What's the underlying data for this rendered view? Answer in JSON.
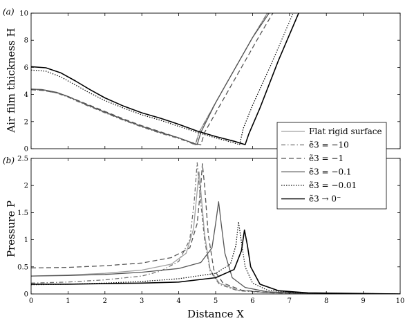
{
  "chart_data": [
    {
      "panel_label": "(a)",
      "type": "line",
      "ylabel": "Air film thickness H",
      "xlim": [
        0,
        10
      ],
      "ylim": [
        0,
        10
      ],
      "xticks": [
        "0",
        "1",
        "2",
        "3",
        "4",
        "5",
        "6",
        "7",
        "8",
        "9",
        "10"
      ],
      "yticks": [
        "0",
        "2",
        "4",
        "6",
        "8",
        "10"
      ],
      "series": [
        {
          "name": "Flat rigid surface",
          "color": "#a0a0a0",
          "dash": "solid",
          "points": [
            [
              0,
              4.4
            ],
            [
              0.3,
              4.36
            ],
            [
              0.7,
              4.15
            ],
            [
              1,
              3.85
            ],
            [
              1.5,
              3.25
            ],
            [
              2,
              2.7
            ],
            [
              2.5,
              2.15
            ],
            [
              3,
              1.65
            ],
            [
              3.5,
              1.2
            ],
            [
              4,
              0.8
            ],
            [
              4.3,
              0.5
            ],
            [
              4.45,
              0.28
            ],
            [
              4.55,
              1.2
            ],
            [
              5,
              3.4
            ],
            [
              5.5,
              5.8
            ],
            [
              6,
              8.2
            ],
            [
              6.4,
              10
            ]
          ]
        },
        {
          "name": "ẽ3 = −10",
          "color": "#707070",
          "dash": "6,3,1.5,3",
          "points": [
            [
              0,
              4.35
            ],
            [
              0.3,
              4.32
            ],
            [
              0.7,
              4.1
            ],
            [
              1,
              3.8
            ],
            [
              1.5,
              3.2
            ],
            [
              2,
              2.65
            ],
            [
              2.5,
              2.1
            ],
            [
              3,
              1.6
            ],
            [
              3.5,
              1.15
            ],
            [
              4,
              0.75
            ],
            [
              4.3,
              0.45
            ],
            [
              4.45,
              0.28
            ],
            [
              4.55,
              1.2
            ],
            [
              5,
              3.4
            ],
            [
              5.5,
              5.8
            ],
            [
              6,
              8.2
            ],
            [
              6.4,
              10
            ]
          ]
        },
        {
          "name": "ẽ3 = −1",
          "color": "#555555",
          "dash": "7,4",
          "points": [
            [
              0,
              4.35
            ],
            [
              0.3,
              4.3
            ],
            [
              0.7,
              4.12
            ],
            [
              1,
              3.85
            ],
            [
              1.5,
              3.3
            ],
            [
              2,
              2.75
            ],
            [
              2.5,
              2.2
            ],
            [
              3,
              1.7
            ],
            [
              3.5,
              1.25
            ],
            [
              4,
              0.8
            ],
            [
              4.3,
              0.5
            ],
            [
              4.6,
              0.28
            ],
            [
              4.7,
              1.2
            ],
            [
              5.2,
              3.6
            ],
            [
              5.7,
              6.0
            ],
            [
              6.2,
              8.4
            ],
            [
              6.55,
              10
            ]
          ]
        },
        {
          "name": "ẽ3 = −0.1",
          "color": "#555555",
          "dash": "solid",
          "points": [
            [
              0,
              4.4
            ],
            [
              0.3,
              4.36
            ],
            [
              0.7,
              4.15
            ],
            [
              1,
              3.85
            ],
            [
              1.5,
              3.25
            ],
            [
              2,
              2.7
            ],
            [
              2.5,
              2.15
            ],
            [
              3,
              1.65
            ],
            [
              3.5,
              1.2
            ],
            [
              4,
              0.8
            ],
            [
              4.3,
              0.5
            ],
            [
              4.5,
              0.3
            ],
            [
              4.6,
              1.2
            ],
            [
              5,
              3.4
            ],
            [
              5.5,
              5.8
            ],
            [
              6,
              8.2
            ],
            [
              6.45,
              10
            ]
          ]
        },
        {
          "name": "ẽ3 = −0.01",
          "color": "#111111",
          "dash": "1.5,2",
          "points": [
            [
              0,
              5.8
            ],
            [
              0.4,
              5.72
            ],
            [
              0.8,
              5.3
            ],
            [
              1.2,
              4.7
            ],
            [
              1.6,
              4.1
            ],
            [
              2,
              3.55
            ],
            [
              2.5,
              3.0
            ],
            [
              3,
              2.5
            ],
            [
              3.5,
              2.1
            ],
            [
              4,
              1.65
            ],
            [
              4.5,
              1.2
            ],
            [
              5,
              0.8
            ],
            [
              5.4,
              0.5
            ],
            [
              5.65,
              0.3
            ],
            [
              5.75,
              1.5
            ],
            [
              6,
              3.2
            ],
            [
              6.5,
              6.2
            ],
            [
              7.1,
              10
            ]
          ]
        },
        {
          "name": "ẽ3 → 0⁻",
          "color": "#000000",
          "dash": "solid",
          "points": [
            [
              0,
              6.05
            ],
            [
              0.4,
              5.97
            ],
            [
              0.8,
              5.6
            ],
            [
              1.2,
              5.0
            ],
            [
              1.6,
              4.35
            ],
            [
              2,
              3.75
            ],
            [
              2.5,
              3.15
            ],
            [
              3,
              2.65
            ],
            [
              3.5,
              2.25
            ],
            [
              4,
              1.8
            ],
            [
              4.5,
              1.3
            ],
            [
              5,
              0.9
            ],
            [
              5.5,
              0.55
            ],
            [
              5.8,
              0.3
            ],
            [
              5.9,
              1.1
            ],
            [
              6.2,
              3.0
            ],
            [
              6.7,
              6.5
            ],
            [
              7.25,
              10
            ]
          ]
        }
      ]
    },
    {
      "panel_label": "(b)",
      "type": "line",
      "xlabel": "Distance X",
      "ylabel": "Pressure P",
      "xlim": [
        0,
        10
      ],
      "ylim": [
        0,
        2.5
      ],
      "xticks": [
        "0",
        "1",
        "2",
        "3",
        "4",
        "5",
        "6",
        "7",
        "8",
        "9",
        "10"
      ],
      "yticks": [
        "0",
        "0.5",
        "1",
        "1.5",
        "2",
        "2.5"
      ],
      "series": [
        {
          "name": "Flat rigid surface",
          "color": "#a0a0a0",
          "dash": "solid",
          "points": [
            [
              0,
              0.33
            ],
            [
              1,
              0.35
            ],
            [
              2,
              0.38
            ],
            [
              3,
              0.44
            ],
            [
              3.8,
              0.55
            ],
            [
              4.2,
              0.75
            ],
            [
              4.4,
              1.2
            ],
            [
              4.5,
              1.9
            ],
            [
              4.55,
              2.25
            ],
            [
              4.6,
              1.9
            ],
            [
              4.7,
              1.1
            ],
            [
              4.85,
              0.45
            ],
            [
              5.1,
              0.2
            ],
            [
              5.6,
              0.07
            ],
            [
              6.5,
              0.02
            ],
            [
              10,
              0
            ]
          ]
        },
        {
          "name": "ẽ3 = −10",
          "color": "#707070",
          "dash": "6,3,1.5,3",
          "points": [
            [
              0,
              0.2
            ],
            [
              1,
              0.22
            ],
            [
              2,
              0.26
            ],
            [
              3,
              0.33
            ],
            [
              3.5,
              0.42
            ],
            [
              4,
              0.6
            ],
            [
              4.3,
              1.0
            ],
            [
              4.42,
              1.7
            ],
            [
              4.5,
              2.42
            ],
            [
              4.58,
              1.8
            ],
            [
              4.7,
              1.0
            ],
            [
              4.85,
              0.42
            ],
            [
              5.1,
              0.18
            ],
            [
              5.6,
              0.06
            ],
            [
              6.5,
              0.02
            ],
            [
              10,
              0
            ]
          ]
        },
        {
          "name": "ẽ3 = −1",
          "color": "#555555",
          "dash": "7,4",
          "points": [
            [
              0,
              0.48
            ],
            [
              1,
              0.49
            ],
            [
              2,
              0.52
            ],
            [
              3,
              0.57
            ],
            [
              3.8,
              0.67
            ],
            [
              4.3,
              0.85
            ],
            [
              4.5,
              1.3
            ],
            [
              4.6,
              2.0
            ],
            [
              4.64,
              2.4
            ],
            [
              4.7,
              2.0
            ],
            [
              4.8,
              1.1
            ],
            [
              4.95,
              0.45
            ],
            [
              5.2,
              0.2
            ],
            [
              5.7,
              0.07
            ],
            [
              6.5,
              0.02
            ],
            [
              10,
              0
            ]
          ]
        },
        {
          "name": "ẽ3 = −0.1",
          "color": "#555555",
          "dash": "solid",
          "points": [
            [
              0,
              0.33
            ],
            [
              1,
              0.34
            ],
            [
              2,
              0.36
            ],
            [
              3,
              0.4
            ],
            [
              4,
              0.47
            ],
            [
              4.6,
              0.58
            ],
            [
              4.9,
              0.85
            ],
            [
              5.0,
              1.3
            ],
            [
              5.08,
              1.7
            ],
            [
              5.15,
              1.3
            ],
            [
              5.25,
              0.75
            ],
            [
              5.45,
              0.3
            ],
            [
              5.8,
              0.12
            ],
            [
              6.4,
              0.04
            ],
            [
              7.5,
              0.01
            ],
            [
              10,
              0
            ]
          ]
        },
        {
          "name": "ẽ3 = −0.01",
          "color": "#111111",
          "dash": "1.5,2",
          "points": [
            [
              0,
              0.17
            ],
            [
              1,
              0.18
            ],
            [
              2,
              0.2
            ],
            [
              3,
              0.23
            ],
            [
              4,
              0.28
            ],
            [
              5,
              0.38
            ],
            [
              5.4,
              0.55
            ],
            [
              5.55,
              0.9
            ],
            [
              5.62,
              1.33
            ],
            [
              5.7,
              0.95
            ],
            [
              5.8,
              0.5
            ],
            [
              6.0,
              0.2
            ],
            [
              6.4,
              0.07
            ],
            [
              7.2,
              0.02
            ],
            [
              10,
              0
            ]
          ]
        },
        {
          "name": "ẽ3 → 0⁻",
          "color": "#000000",
          "dash": "solid",
          "points": [
            [
              0,
              0.18
            ],
            [
              1,
              0.18
            ],
            [
              2,
              0.19
            ],
            [
              3,
              0.2
            ],
            [
              4,
              0.22
            ],
            [
              5,
              0.3
            ],
            [
              5.5,
              0.45
            ],
            [
              5.7,
              0.8
            ],
            [
              5.78,
              1.18
            ],
            [
              5.86,
              0.9
            ],
            [
              5.95,
              0.5
            ],
            [
              6.2,
              0.18
            ],
            [
              6.7,
              0.06
            ],
            [
              7.5,
              0.02
            ],
            [
              10,
              0
            ]
          ]
        }
      ]
    }
  ]
}
